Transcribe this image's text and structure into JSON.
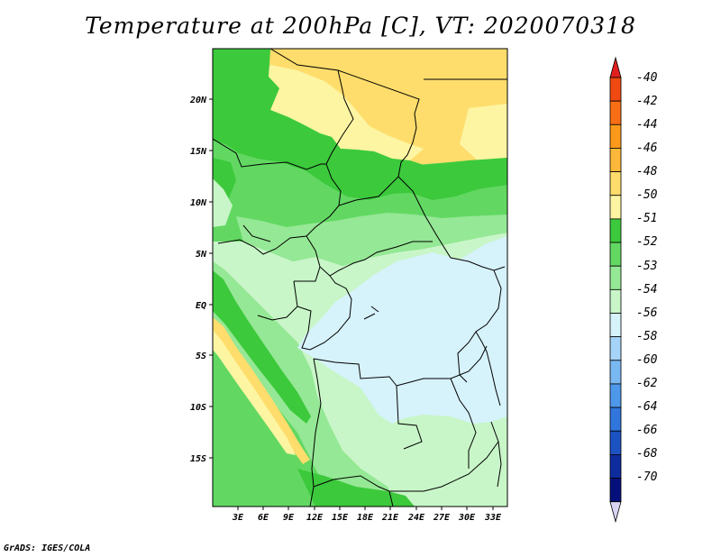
{
  "title": "Temperature at 200hPa [C], VT: 2020070318",
  "credit": "GrADS: IGES/COLA",
  "map": {
    "lat_ticks": [
      "20N",
      "15N",
      "10N",
      "5N",
      "EQ",
      "5S",
      "10S",
      "15S"
    ],
    "lon_ticks": [
      "3E",
      "6E",
      "9E",
      "12E",
      "15E",
      "18E",
      "21E",
      "24E",
      "27E",
      "30E",
      "33E"
    ]
  },
  "colorbar": {
    "labels": [
      "-40",
      "-42",
      "-44",
      "-46",
      "-48",
      "-50",
      "-51",
      "-52",
      "-53",
      "-54",
      "-56",
      "-58",
      "-60",
      "-62",
      "-64",
      "-66",
      "-68",
      "-70"
    ],
    "colors": {
      "top_arrow": "#e0201e",
      "bins": [
        "#f04a12",
        "#f86e14",
        "#fb9a1a",
        "#fcb83a",
        "#fedd6c",
        "#fdf5a2",
        "#3cc93c",
        "#62d862",
        "#95e895",
        "#c8f6c8",
        "#d6f2fb",
        "#a6d4f8",
        "#7ab8f2",
        "#4e98ea",
        "#3076dc",
        "#1c52c2",
        "#0e2c9e",
        "#06107c"
      ],
      "bottom_arrow": "#d8d4f4"
    }
  },
  "field_colors": {
    "warm_yellow": "#fedd6c",
    "pale_yellow": "#fdf5a2",
    "dark_green": "#3cc93c",
    "mid_green": "#62d862",
    "light_green": "#95e895",
    "pale_green": "#c8f6c8",
    "pale_cyan": "#d6f2fb"
  }
}
